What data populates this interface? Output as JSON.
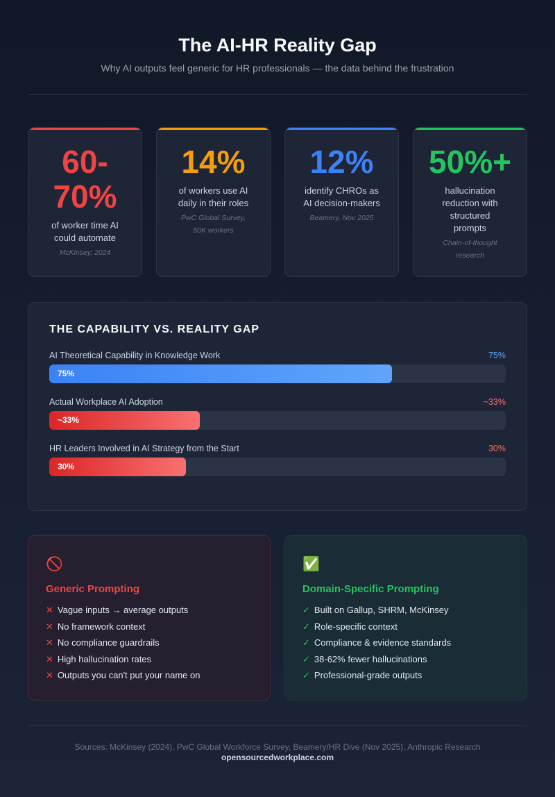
{
  "header": {
    "title": "The AI-HR Reality Gap",
    "subtitle": "Why AI outputs feel generic for HR professionals — the data behind the frustration"
  },
  "stats": [
    {
      "value": "60-70%",
      "desc": "of worker time AI could automate",
      "source": "McKinsey, 2024",
      "color": "#ef4444"
    },
    {
      "value": "14%",
      "desc": "of workers use AI daily in their roles",
      "source": "PwC Global Survey, 50K workers",
      "color": "#f59e0b"
    },
    {
      "value": "12%",
      "desc": "identify CHROs as AI decision-makers",
      "source": "Beamery, Nov 2025",
      "color": "#3b82f6"
    },
    {
      "value": "50%+",
      "desc": "hallucination reduction with structured prompts",
      "source": "Chain-of-thought research",
      "color": "#22c55e"
    }
  ],
  "gap": {
    "title": "THE CAPABILITY VS. REALITY GAP",
    "bars": [
      {
        "label": "AI Theoretical Capability in Knowledge Work",
        "value_label": "75%",
        "percent": 75,
        "color": "#60a5fa"
      },
      {
        "label": "Actual Workplace AI Adoption",
        "value_label": "~33%",
        "percent": 33,
        "color": "#f87171"
      },
      {
        "label": "HR Leaders Involved in AI Strategy from the Start",
        "value_label": "30%",
        "percent": 30,
        "color": "#f87171"
      }
    ]
  },
  "generic": {
    "icon": "prohibited-icon",
    "title": "Generic Prompting",
    "marker": "✕",
    "items": [
      "Vague inputs → average outputs",
      "No framework context",
      "No compliance guardrails",
      "High hallucination rates",
      "Outputs you can't put your name on"
    ]
  },
  "domain": {
    "icon": "check-box-icon",
    "title": "Domain-Specific Prompting",
    "marker": "✓",
    "items": [
      "Built on Gallup, SHRM, McKinsey",
      "Role-specific context",
      "Compliance & evidence standards",
      "38-62% fewer hallucinations",
      "Professional-grade outputs"
    ]
  },
  "footer": {
    "sources": "Sources: McKinsey (2024), PwC Global Workforce Survey, Beamery/HR Dive (Nov 2025), Anthropic Research",
    "site": "opensourcedworkplace.com"
  }
}
